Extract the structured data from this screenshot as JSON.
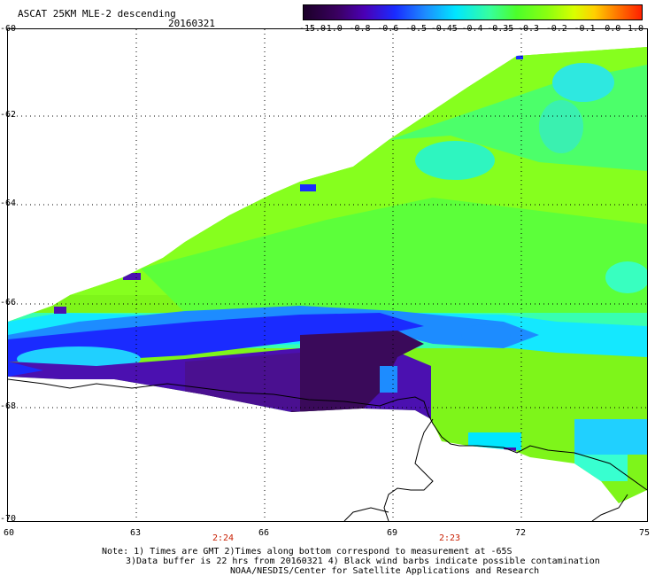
{
  "header": {
    "title": "ASCAT 25KM MLE-2 descending",
    "date": "20160321"
  },
  "colorbar": {
    "labels": [
      "-15.0",
      "-1.0",
      "-0.8",
      "-0.6",
      "-0.5",
      "-0.45",
      "-0.4",
      "-0.35",
      "-0.3",
      "-0.2",
      "-0.1",
      "0.0",
      "1.0"
    ]
  },
  "map": {
    "lat_labels": [
      "-60",
      "-62",
      "-64",
      "-66",
      "-68",
      "-70"
    ],
    "lon_labels": [
      "60",
      "63",
      "66",
      "69",
      "72",
      "75"
    ],
    "pass_times": [
      "2:24",
      "2:23"
    ],
    "colors": {
      "dark_purple": "#3a0a5a",
      "purple": "#4b10b0",
      "blue": "#1a2bff",
      "cyan": "#00e6ff",
      "green": "#4cff2a",
      "lime": "#8aff10",
      "coastline": "#000000"
    }
  },
  "footer": {
    "note1": "Note: 1) Times are GMT 2)Times along bottom correspond to measurement at -65S",
    "note2": "3)Data buffer is 22 hrs from 20160321 4) Black wind barbs indicate possible contamination",
    "note3": "NOAA/NESDIS/Center for Satellite Applications and Research"
  }
}
